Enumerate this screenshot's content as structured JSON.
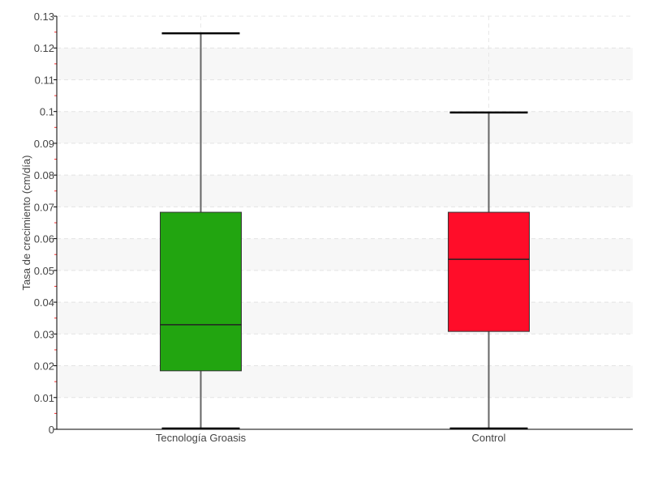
{
  "chart_data": {
    "type": "box",
    "title": "",
    "xlabel": "",
    "ylabel": "Tasa de crecimiento (cm/día)",
    "ylim": [
      0,
      0.13
    ],
    "yticks": [
      "0",
      "0.01",
      "0.02",
      "0.03",
      "0.04",
      "0.05",
      "0.06",
      "0.07",
      "0.08",
      "0.09",
      "0.1",
      "0.11",
      "0.12",
      "0.13"
    ],
    "grid": true,
    "categories": [
      "Tecnología Groasis",
      "Control"
    ],
    "boxes": [
      {
        "category": "Tecnología Groasis",
        "min": 0.0,
        "q1": 0.0184,
        "median": 0.0329,
        "q3": 0.0683,
        "max": 0.1246,
        "color": "#22a510"
      },
      {
        "category": "Control",
        "min": 0.0,
        "q1": 0.0308,
        "median": 0.0535,
        "q3": 0.0683,
        "max": 0.0997,
        "color": "#ff0d29"
      }
    ]
  }
}
